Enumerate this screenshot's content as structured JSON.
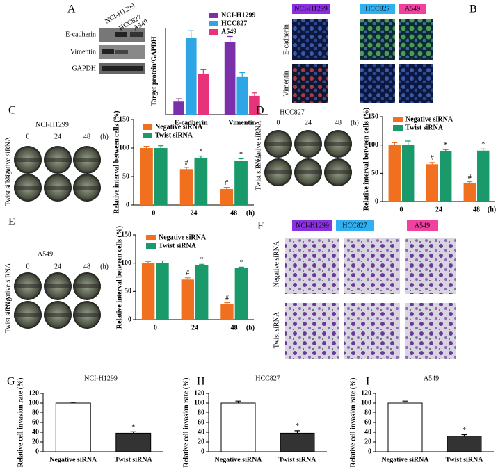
{
  "chart_data": [
    {
      "type": "bar",
      "label": "A",
      "ylabel": "Target protein/GAPDH",
      "categories": [
        "E-cadherin",
        "Vimentin"
      ],
      "ylim": [
        0,
        0.6
      ],
      "series": [
        {
          "name": "NCI-H1299",
          "color": "#7b2fa8",
          "values": [
            0.09,
            0.5
          ],
          "errors": [
            0.02,
            0.04
          ]
        },
        {
          "name": "HCC827",
          "color": "#2ea6e6",
          "values": [
            0.53,
            0.26
          ],
          "errors": [
            0.05,
            0.03
          ]
        },
        {
          "name": "A549",
          "color": "#e8337a",
          "values": [
            0.28,
            0.13
          ],
          "errors": [
            0.03,
            0.02
          ]
        }
      ]
    },
    {
      "type": "bar",
      "label": "C",
      "ylabel": "Relative interval between cells (%)",
      "xlabel": "(h)",
      "categories": [
        "0",
        "24",
        "48"
      ],
      "ylim": [
        0,
        150
      ],
      "yticks": [
        0,
        50,
        100,
        150
      ],
      "series": [
        {
          "name": "Negative siRNA",
          "color": "#f07020",
          "values": [
            100,
            63,
            28
          ],
          "errors": [
            3,
            3,
            3
          ],
          "markers": [
            null,
            "#",
            "#"
          ]
        },
        {
          "name": "Twist siRNA",
          "color": "#1a9a6a",
          "values": [
            100,
            83,
            78
          ],
          "errors": [
            4,
            3,
            3
          ],
          "markers": [
            null,
            "*",
            "*"
          ]
        }
      ]
    },
    {
      "type": "bar",
      "label": "D",
      "ylabel": "Relative interval between cells (%)",
      "xlabel": "(h)",
      "categories": [
        "0",
        "24",
        "48"
      ],
      "ylim": [
        0,
        150
      ],
      "yticks": [
        0,
        50,
        100,
        150
      ],
      "series": [
        {
          "name": "Negative siRNA",
          "color": "#f07020",
          "values": [
            100,
            66,
            32
          ],
          "errors": [
            4,
            3,
            3
          ],
          "markers": [
            null,
            "#",
            "#"
          ]
        },
        {
          "name": "Twist siRNA",
          "color": "#1a9a6a",
          "values": [
            100,
            89,
            90
          ],
          "errors": [
            7,
            3,
            3
          ],
          "markers": [
            null,
            "*",
            "*"
          ]
        }
      ]
    },
    {
      "type": "bar",
      "label": "E",
      "ylabel": "Relative interval between cells (%)",
      "xlabel": "(h)",
      "categories": [
        "0",
        "24",
        "48"
      ],
      "ylim": [
        0,
        150
      ],
      "yticks": [
        0,
        50,
        100,
        150
      ],
      "series": [
        {
          "name": "Negative siRNA",
          "color": "#f07020",
          "values": [
            100,
            71,
            28
          ],
          "errors": [
            3,
            3,
            2
          ],
          "markers": [
            null,
            "#",
            "#"
          ]
        },
        {
          "name": "Twist siRNA",
          "color": "#1a9a6a",
          "values": [
            100,
            96,
            91
          ],
          "errors": [
            4,
            2,
            2
          ],
          "markers": [
            null,
            "*",
            "*"
          ]
        }
      ]
    },
    {
      "type": "bar",
      "label": "G",
      "title": "NCI-H1299",
      "ylabel": "Relative cell invasion rate (%)",
      "categories": [
        "Negative siRNA",
        "Twist siRNA"
      ],
      "ylim": [
        0,
        120
      ],
      "yticks": [
        0,
        20,
        40,
        60,
        80,
        100,
        120
      ],
      "series": [
        {
          "colors": [
            "#ffffff",
            "#333333"
          ],
          "values": [
            100,
            38
          ],
          "errors": [
            2,
            3
          ],
          "markers": [
            null,
            "*"
          ]
        }
      ]
    },
    {
      "type": "bar",
      "label": "H",
      "title": "HCC827",
      "ylabel": "Relative cell invasion rate (%)",
      "categories": [
        "Negative siRNA",
        "Twist siRNA"
      ],
      "ylim": [
        0,
        120
      ],
      "yticks": [
        0,
        20,
        40,
        60,
        80,
        100,
        120
      ],
      "series": [
        {
          "colors": [
            "#ffffff",
            "#333333"
          ],
          "values": [
            100,
            38
          ],
          "errors": [
            4,
            5
          ],
          "markers": [
            null,
            "*"
          ]
        }
      ]
    },
    {
      "type": "bar",
      "label": "I",
      "title": "A549",
      "ylabel": "Relative cell invasion rate (%)",
      "categories": [
        "Negative siRNA",
        "Twist siRNA"
      ],
      "ylim": [
        0,
        120
      ],
      "yticks": [
        0,
        20,
        40,
        60,
        80,
        100,
        120
      ],
      "series": [
        {
          "colors": [
            "#ffffff",
            "#333333"
          ],
          "values": [
            100,
            32
          ],
          "errors": [
            4,
            3
          ],
          "markers": [
            null,
            "*"
          ]
        }
      ]
    }
  ],
  "figure": {
    "blot": {
      "lanes": [
        "NCI-H1299",
        "HCC827",
        "A549"
      ],
      "rows": [
        "E-cadherin",
        "Vimentin",
        "GAPDH"
      ]
    },
    "B": {
      "label": "B",
      "columns": [
        "NCI-H1299",
        "HCC827",
        "A549"
      ],
      "rows": [
        "E-cadherin",
        "Vimentin"
      ]
    },
    "C": {
      "title": "NCI-H1299",
      "times": [
        "0",
        "24",
        "48"
      ],
      "unit": "(h)",
      "rows": [
        "Negative siRNA",
        "Twist siRNA"
      ]
    },
    "D": {
      "title": "HCC827",
      "times": [
        "0",
        "24",
        "48"
      ],
      "unit": "(h)",
      "rows": [
        "Negative siRNA",
        "Twist siRNA"
      ]
    },
    "E": {
      "title": "A549",
      "times": [
        "0",
        "24",
        "48"
      ],
      "unit": "(h)",
      "rows": [
        "Negative siRNA",
        "Twist siRNA"
      ]
    },
    "F": {
      "label": "F",
      "columns": [
        "NCI-H1299",
        "HCC827",
        "A549"
      ],
      "rows": [
        "Negative siRNA",
        "Twist siRNA"
      ]
    }
  }
}
